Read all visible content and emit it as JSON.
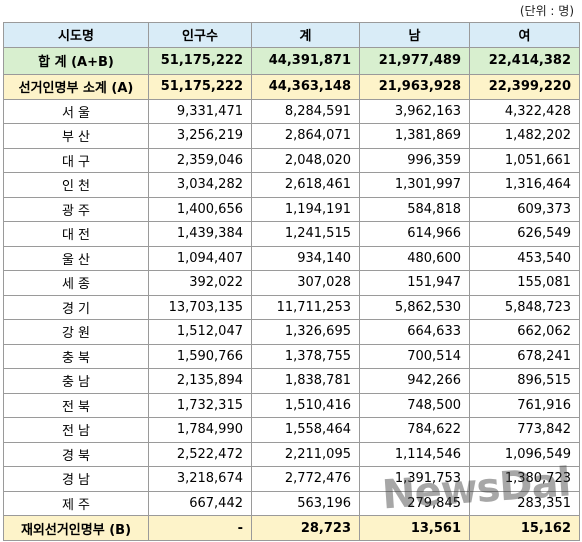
{
  "unit_note": "(단위 : 명)",
  "headers": [
    "시도명",
    "인구수",
    "계",
    "남",
    "여"
  ],
  "total": {
    "name": "합 계 (A+B)",
    "pop": "51,175,222",
    "sum": "44,391,871",
    "male": "21,977,489",
    "female": "22,414,382"
  },
  "subtotal": {
    "name": "선거인명부 소계 (A)",
    "pop": "51,175,222",
    "sum": "44,363,148",
    "male": "21,963,928",
    "female": "22,399,220"
  },
  "rows": [
    {
      "name": "서 울",
      "pop": "9,331,471",
      "sum": "8,284,591",
      "male": "3,962,163",
      "female": "4,322,428"
    },
    {
      "name": "부 산",
      "pop": "3,256,219",
      "sum": "2,864,071",
      "male": "1,381,869",
      "female": "1,482,202"
    },
    {
      "name": "대 구",
      "pop": "2,359,046",
      "sum": "2,048,020",
      "male": "996,359",
      "female": "1,051,661"
    },
    {
      "name": "인 천",
      "pop": "3,034,282",
      "sum": "2,618,461",
      "male": "1,301,997",
      "female": "1,316,464"
    },
    {
      "name": "광 주",
      "pop": "1,400,656",
      "sum": "1,194,191",
      "male": "584,818",
      "female": "609,373"
    },
    {
      "name": "대 전",
      "pop": "1,439,384",
      "sum": "1,241,515",
      "male": "614,966",
      "female": "626,549"
    },
    {
      "name": "울 산",
      "pop": "1,094,407",
      "sum": "934,140",
      "male": "480,600",
      "female": "453,540"
    },
    {
      "name": "세 종",
      "pop": "392,022",
      "sum": "307,028",
      "male": "151,947",
      "female": "155,081"
    },
    {
      "name": "경 기",
      "pop": "13,703,135",
      "sum": "11,711,253",
      "male": "5,862,530",
      "female": "5,848,723"
    },
    {
      "name": "강 원",
      "pop": "1,512,047",
      "sum": "1,326,695",
      "male": "664,633",
      "female": "662,062"
    },
    {
      "name": "충 북",
      "pop": "1,590,766",
      "sum": "1,378,755",
      "male": "700,514",
      "female": "678,241"
    },
    {
      "name": "충 남",
      "pop": "2,135,894",
      "sum": "1,838,781",
      "male": "942,266",
      "female": "896,515"
    },
    {
      "name": "전 북",
      "pop": "1,732,315",
      "sum": "1,510,416",
      "male": "748,500",
      "female": "761,916"
    },
    {
      "name": "전 남",
      "pop": "1,784,990",
      "sum": "1,558,464",
      "male": "784,622",
      "female": "773,842"
    },
    {
      "name": "경 북",
      "pop": "2,522,472",
      "sum": "2,211,095",
      "male": "1,114,546",
      "female": "1,096,549"
    },
    {
      "name": "경 남",
      "pop": "3,218,674",
      "sum": "2,772,476",
      "male": "1,391,753",
      "female": "1,380,723"
    },
    {
      "name": "제 주",
      "pop": "667,442",
      "sum": "563,196",
      "male": "279,845",
      "female": "283,351"
    }
  ],
  "overseas": {
    "name": "재외선거인명부 (B)",
    "pop": "-",
    "sum": "28,723",
    "male": "13,561",
    "female": "15,162"
  },
  "watermark": "NewsDal"
}
